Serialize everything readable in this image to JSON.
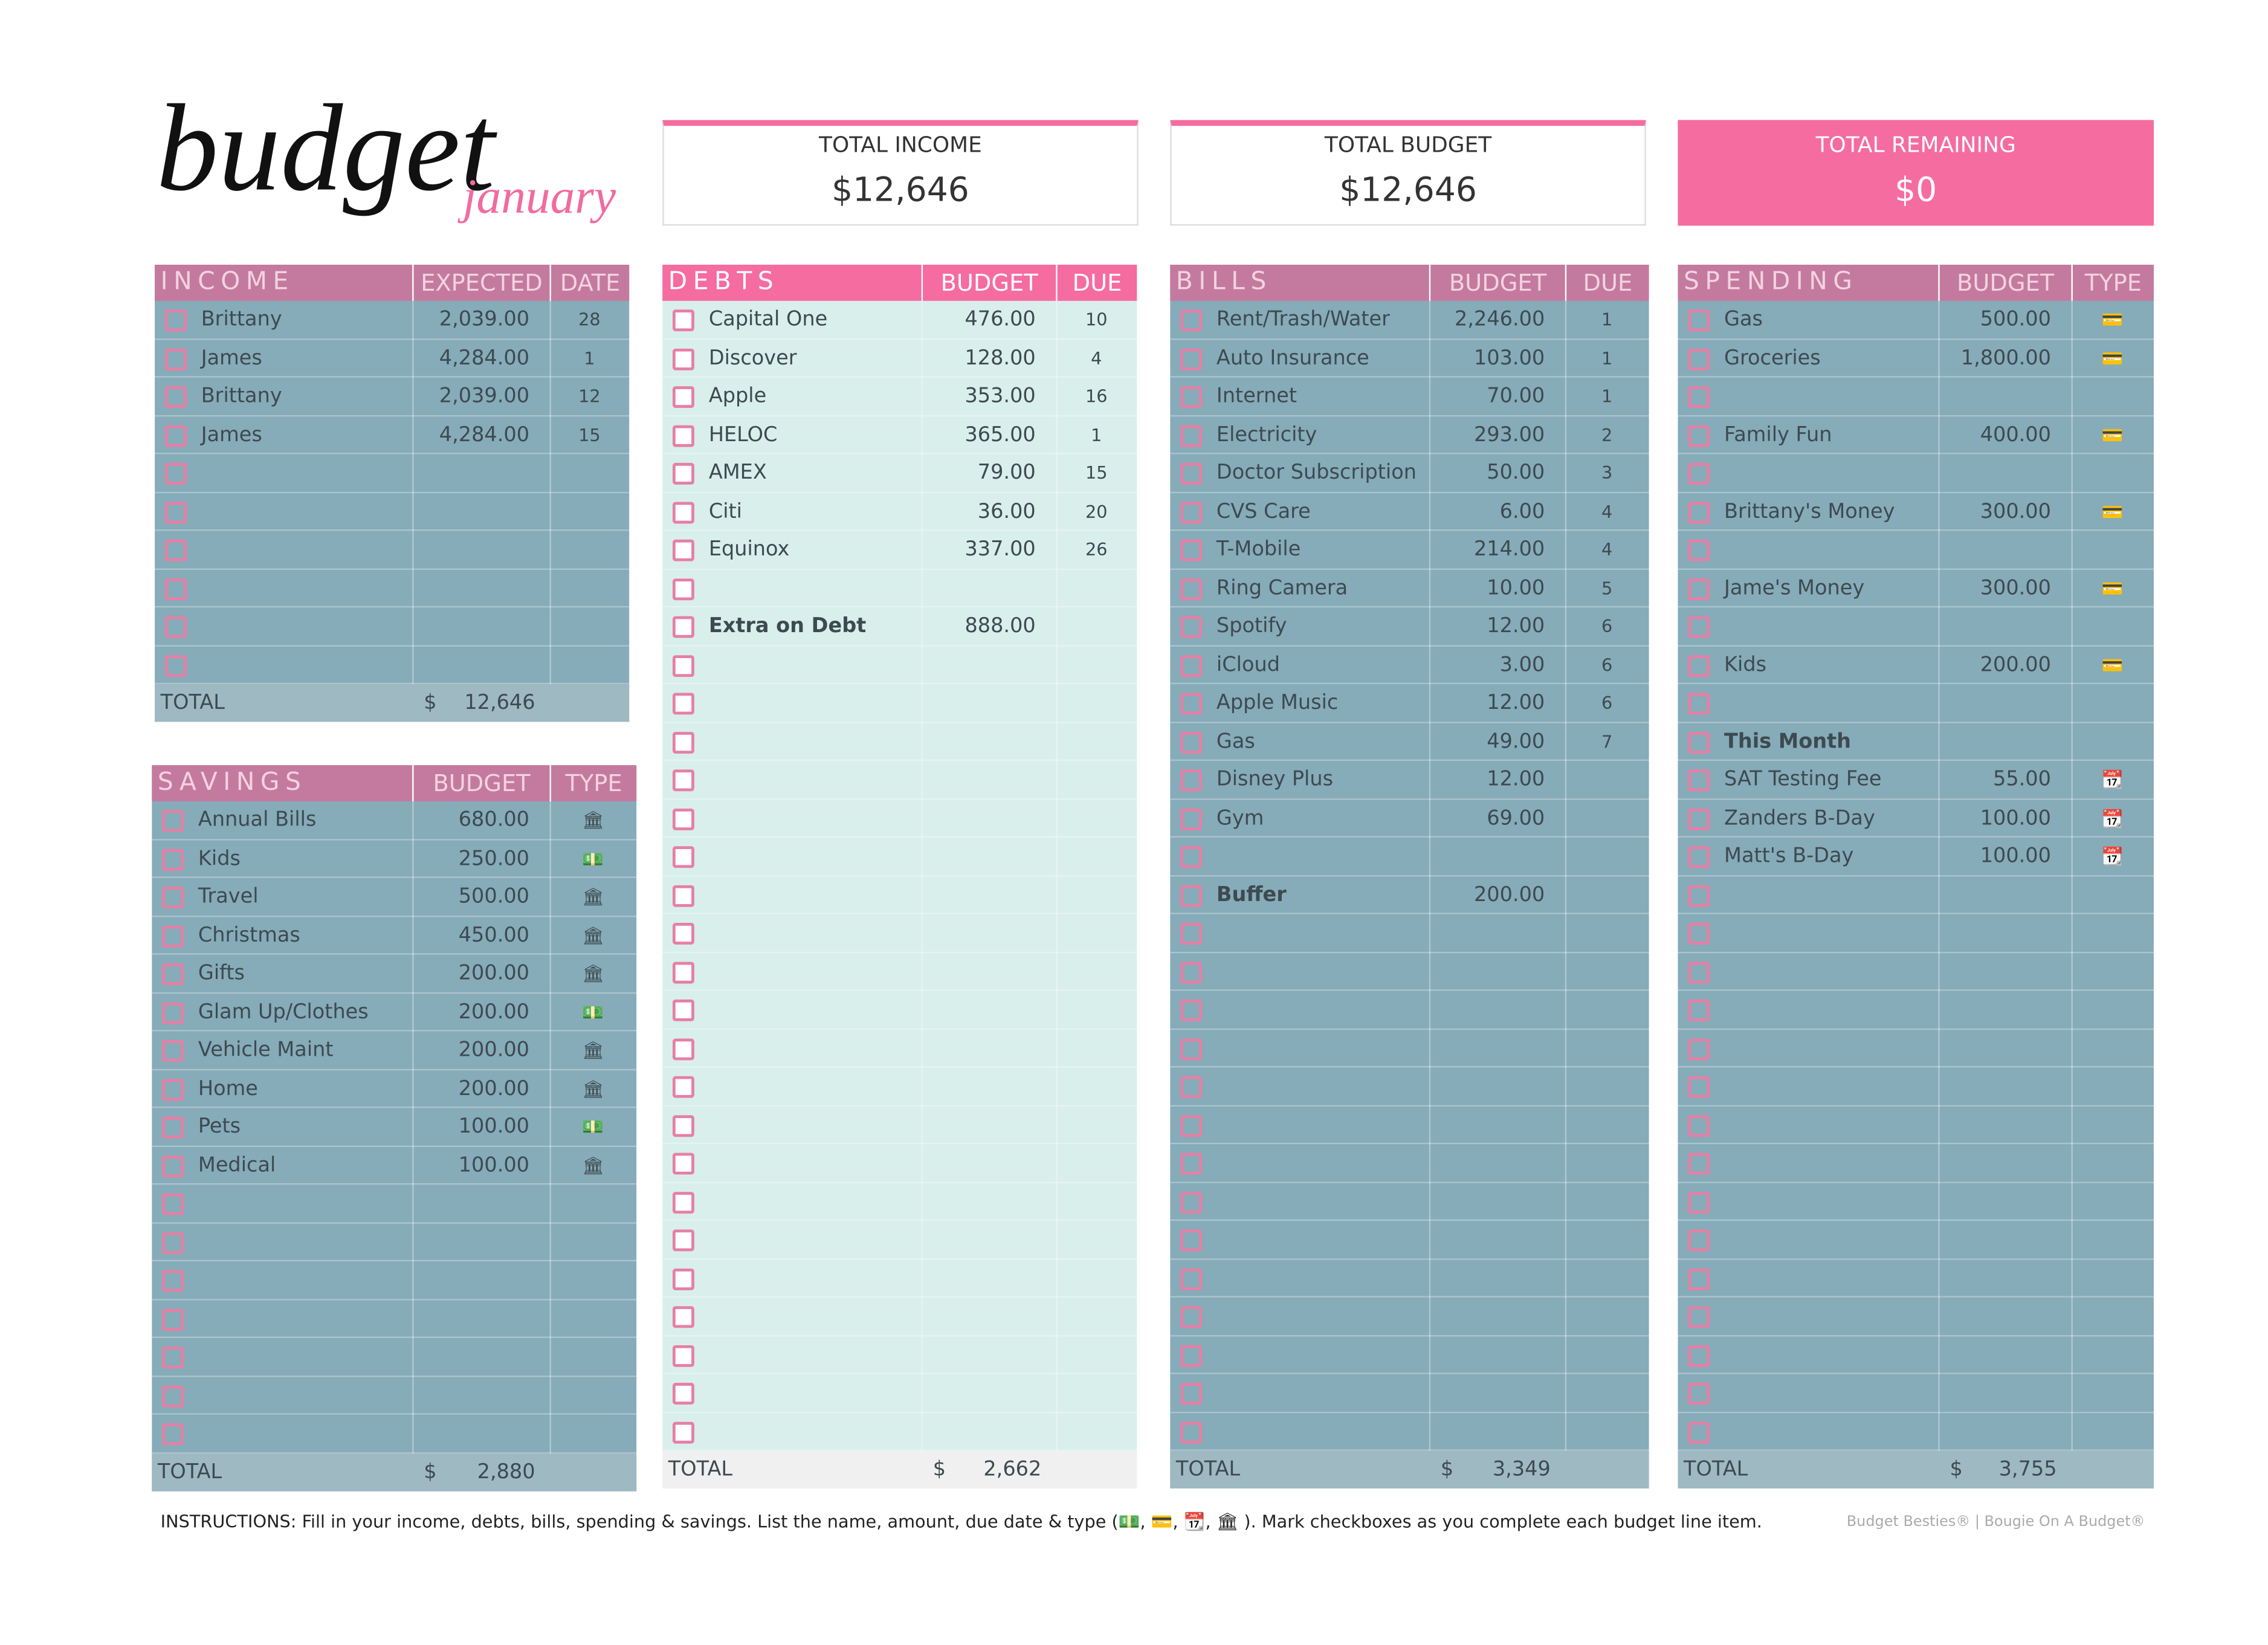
{
  "header": {
    "title": "budget",
    "subtitle": "january"
  },
  "cards": [
    {
      "label": "TOTAL INCOME",
      "value": "$12,646"
    },
    {
      "label": "TOTAL BUDGET",
      "value": "$12,646"
    },
    {
      "label": "TOTAL REMAINING",
      "value": "$0"
    }
  ],
  "tables": [
    {
      "title": "INCOME",
      "columns": [
        "EXPECTED",
        "DATE"
      ],
      "rows": [
        [
          "Brittany",
          "2,039.00",
          "28"
        ],
        [
          "James",
          "4,284.00",
          "1"
        ],
        [
          "Brittany",
          "2,039.00",
          "12"
        ],
        [
          "James",
          "4,284.00",
          "15"
        ]
      ],
      "total": {
        "label": "TOTAL",
        "currency": "$",
        "amount": "12,646"
      }
    },
    {
      "title": "SAVINGS",
      "columns": [
        "BUDGET",
        "TYPE"
      ],
      "rows": [
        [
          "Annual Bills",
          "680.00",
          "🏛"
        ],
        [
          "Kids",
          "250.00",
          "💵"
        ],
        [
          "Travel",
          "500.00",
          "🏛"
        ],
        [
          "Christmas",
          "450.00",
          "🏛"
        ],
        [
          "Gifts",
          "200.00",
          "🏛"
        ],
        [
          "Glam Up/Clothes",
          "200.00",
          "💵"
        ],
        [
          "Vehicle Maint",
          "200.00",
          "🏛"
        ],
        [
          "Home",
          "200.00",
          "🏛"
        ],
        [
          "Pets",
          "100.00",
          "💵"
        ],
        [
          "Medical",
          "100.00",
          "🏛"
        ]
      ],
      "total": {
        "label": "TOTAL",
        "currency": "$",
        "amount": "2,880"
      }
    },
    {
      "title": "DEBTS",
      "columns": [
        "BUDGET",
        "DUE"
      ],
      "rows": [
        [
          "Capital One",
          "476.00",
          "10"
        ],
        [
          "Discover",
          "128.00",
          "4"
        ],
        [
          "Apple",
          "353.00",
          "16"
        ],
        [
          "HELOC",
          "365.00",
          "1"
        ],
        [
          "AMEX",
          "79.00",
          "15"
        ],
        [
          "Citi",
          "36.00",
          "20"
        ],
        [
          "Equinox",
          "337.00",
          "26"
        ],
        null,
        [
          "Extra on Debt",
          "888.00",
          null
        ]
      ],
      "bold_rows": [
        8
      ],
      "total": {
        "label": "TOTAL",
        "currency": "$",
        "amount": "2,662"
      }
    },
    {
      "title": "BILLS",
      "columns": [
        "BUDGET",
        "DUE"
      ],
      "rows": [
        [
          "Rent/Trash/Water",
          "2,246.00",
          "1"
        ],
        [
          "Auto Insurance",
          "103.00",
          "1"
        ],
        [
          "Internet",
          "70.00",
          "1"
        ],
        [
          "Electricity",
          "293.00",
          "2"
        ],
        [
          "Doctor Subscription",
          "50.00",
          "3"
        ],
        [
          "CVS Care",
          "6.00",
          "4"
        ],
        [
          "T-Mobile",
          "214.00",
          "4"
        ],
        [
          "Ring Camera",
          "10.00",
          "5"
        ],
        [
          "Spotify",
          "12.00",
          "6"
        ],
        [
          "iCloud",
          "3.00",
          "6"
        ],
        [
          "Apple Music",
          "12.00",
          "6"
        ],
        [
          "Gas",
          "49.00",
          "7"
        ],
        [
          "Disney Plus",
          "12.00",
          null
        ],
        [
          "Gym",
          "69.00",
          null
        ],
        null,
        [
          "Buffer",
          "200.00",
          null
        ]
      ],
      "bold_rows": [
        15
      ],
      "total": {
        "label": "TOTAL",
        "currency": "$",
        "amount": "3,349"
      }
    },
    {
      "title": "SPENDING",
      "columns": [
        "BUDGET",
        "TYPE"
      ],
      "rows": [
        [
          "Gas",
          "500.00",
          "💳"
        ],
        [
          "Groceries",
          "1,800.00",
          "💳"
        ],
        null,
        [
          "Family Fun",
          "400.00",
          "💳"
        ],
        null,
        [
          "Brittany's Money",
          "300.00",
          "💳"
        ],
        null,
        [
          "Jame's Money",
          "300.00",
          "💳"
        ],
        null,
        [
          "Kids",
          "200.00",
          "💳"
        ],
        null,
        [
          "This Month",
          null,
          null
        ],
        [
          "SAT Testing Fee",
          "55.00",
          "📆"
        ],
        [
          "Zanders B-Day",
          "100.00",
          "📆"
        ],
        [
          "Matt's B-Day",
          "100.00",
          "📆"
        ]
      ],
      "bold_rows": [
        11
      ],
      "total": {
        "label": "TOTAL",
        "currency": "$",
        "amount": "3,755"
      }
    }
  ],
  "footer": {
    "instructions": "INSTRUCTIONS: Fill in your income, debts, bills, spending & savings. List the name, amount, due date & type (💵, 💳, 📆, 🏛 ). Mark checkboxes as you complete each budget line item.",
    "credit": "Budget Besties® | Bougie On A Budget®"
  }
}
